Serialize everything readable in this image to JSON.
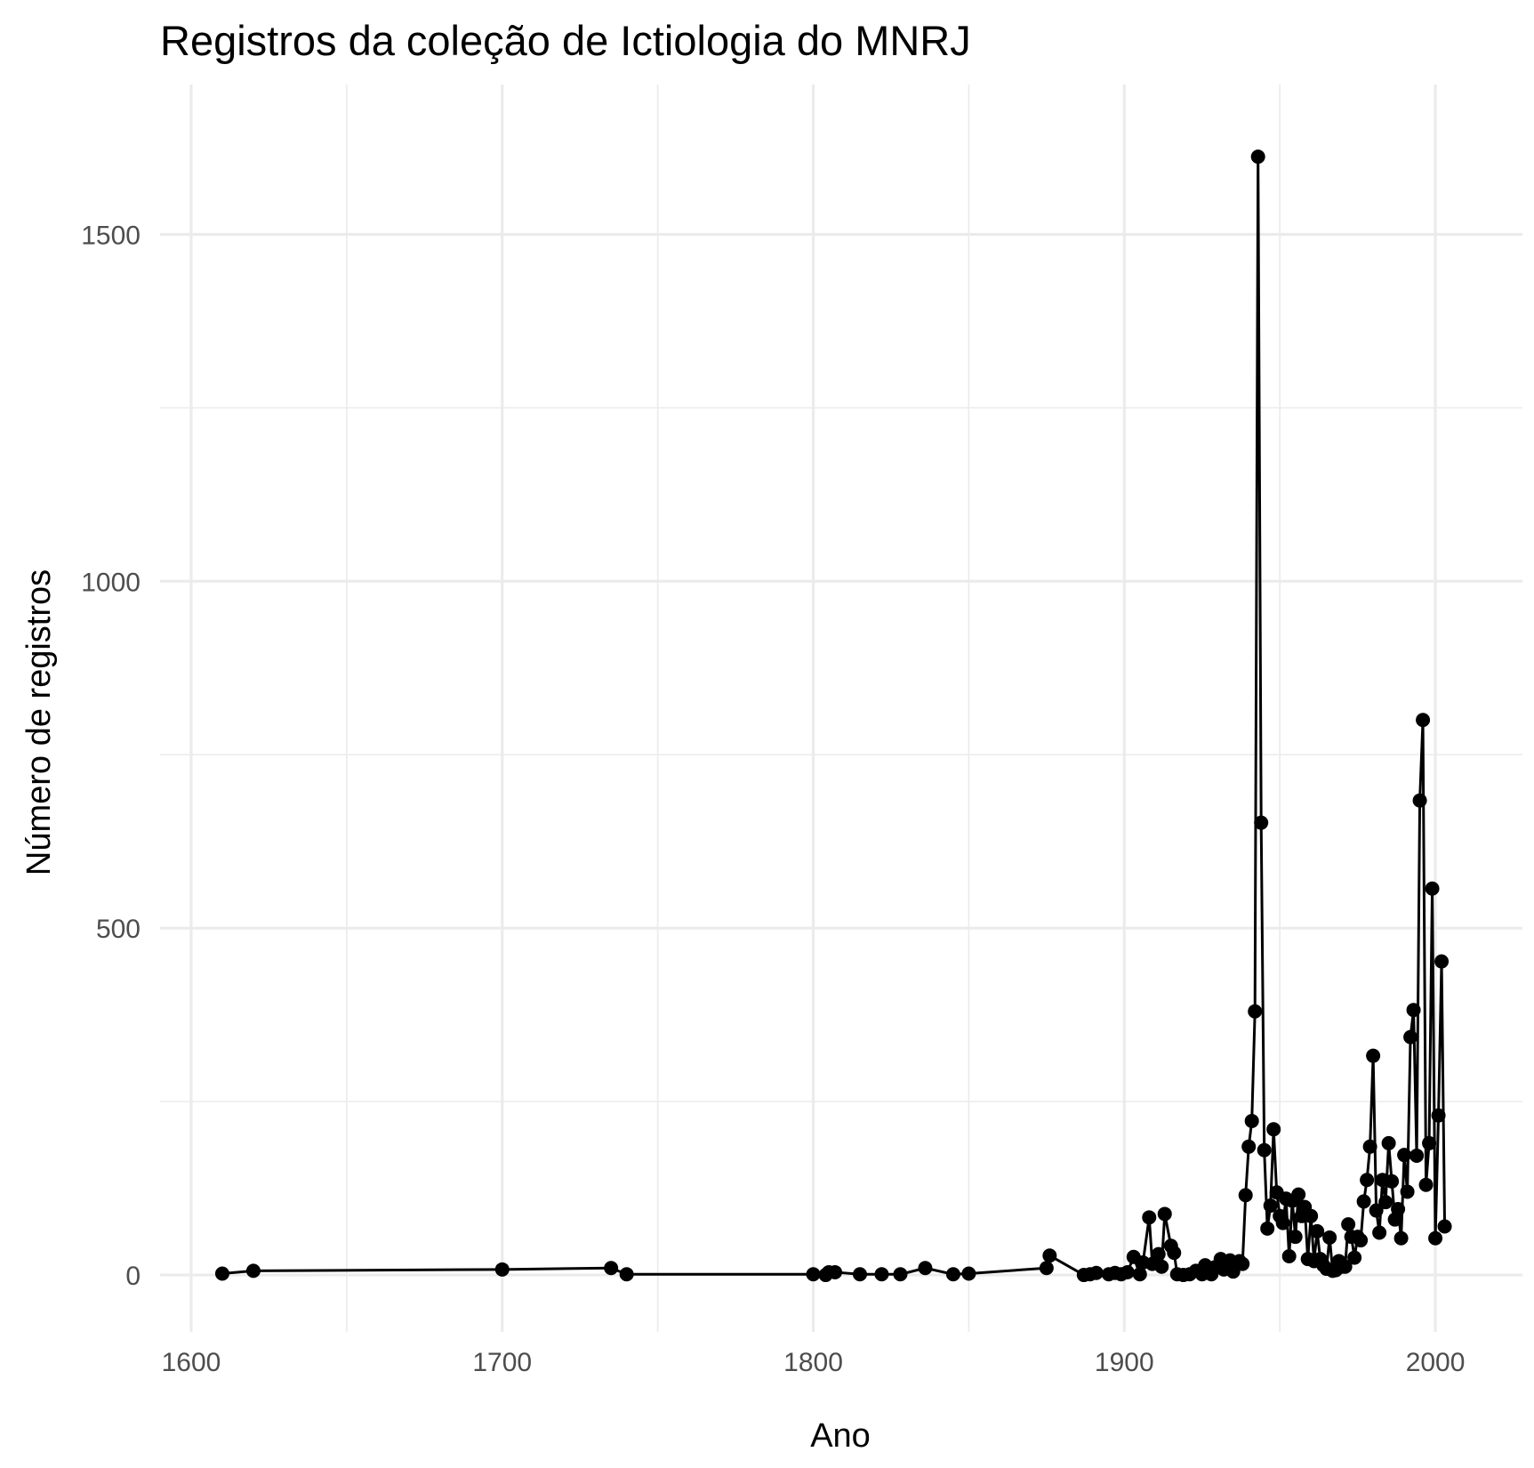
{
  "chart_data": {
    "type": "line",
    "title": "Registros da coleção de Ictiologia do MNRJ",
    "xlabel": "Ano",
    "ylabel": "Número de registros",
    "xlim": [
      1590,
      2028
    ],
    "ylim": [
      -82,
      1716
    ],
    "x_ticks": [
      1600,
      1700,
      1800,
      1900,
      2000
    ],
    "x_minor_ticks": [
      1650,
      1750,
      1850,
      1950
    ],
    "y_ticks": [
      0,
      500,
      1000,
      1500
    ],
    "y_minor_ticks": [
      250,
      750,
      1250
    ],
    "x_tick_labels": [
      "1600",
      "1700",
      "1800",
      "1900",
      "2000"
    ],
    "y_tick_labels": [
      "0",
      "500",
      "1000",
      "1500"
    ],
    "grid": true,
    "legend": false,
    "colors": {
      "line": "#000000",
      "points": "#000000",
      "grid": "#ebebeb",
      "tick_text": "#4d4d4d"
    },
    "series": [
      {
        "points": [
          [
            1610,
            2
          ],
          [
            1620,
            6
          ],
          [
            1700,
            8
          ],
          [
            1735,
            10
          ],
          [
            1740,
            1
          ],
          [
            1800,
            1
          ],
          [
            1804,
            0
          ],
          [
            1805,
            4
          ],
          [
            1807,
            4
          ],
          [
            1815,
            1
          ],
          [
            1822,
            1
          ],
          [
            1828,
            1
          ],
          [
            1836,
            10
          ],
          [
            1845,
            1
          ],
          [
            1850,
            2
          ],
          [
            1875,
            10
          ],
          [
            1876,
            28
          ],
          [
            1887,
            0
          ],
          [
            1889,
            1
          ],
          [
            1891,
            3
          ],
          [
            1895,
            1
          ],
          [
            1897,
            3
          ],
          [
            1899,
            1
          ],
          [
            1901,
            4
          ],
          [
            1903,
            26
          ],
          [
            1905,
            1
          ],
          [
            1906,
            18
          ],
          [
            1908,
            83
          ],
          [
            1909,
            16
          ],
          [
            1911,
            30
          ],
          [
            1912,
            12
          ],
          [
            1913,
            88
          ],
          [
            1915,
            42
          ],
          [
            1916,
            32
          ],
          [
            1917,
            1
          ],
          [
            1919,
            0
          ],
          [
            1921,
            1
          ],
          [
            1923,
            6
          ],
          [
            1925,
            1
          ],
          [
            1926,
            14
          ],
          [
            1928,
            1
          ],
          [
            1929,
            11
          ],
          [
            1931,
            23
          ],
          [
            1932,
            8
          ],
          [
            1934,
            21
          ],
          [
            1935,
            5
          ],
          [
            1937,
            20
          ],
          [
            1938,
            16
          ],
          [
            1939,
            115
          ],
          [
            1940,
            185
          ],
          [
            1941,
            222
          ],
          [
            1942,
            380
          ],
          [
            1943,
            1612
          ],
          [
            1944,
            652
          ],
          [
            1945,
            180
          ],
          [
            1946,
            67
          ],
          [
            1947,
            100
          ],
          [
            1948,
            210
          ],
          [
            1949,
            119
          ],
          [
            1950,
            85
          ],
          [
            1951,
            75
          ],
          [
            1952,
            110
          ],
          [
            1953,
            27
          ],
          [
            1954,
            107
          ],
          [
            1955,
            55
          ],
          [
            1956,
            116
          ],
          [
            1957,
            85
          ],
          [
            1958,
            98
          ],
          [
            1959,
            23
          ],
          [
            1960,
            85
          ],
          [
            1961,
            20
          ],
          [
            1962,
            63
          ],
          [
            1963,
            23
          ],
          [
            1964,
            14
          ],
          [
            1965,
            9
          ],
          [
            1966,
            54
          ],
          [
            1967,
            6
          ],
          [
            1968,
            7
          ],
          [
            1969,
            20
          ],
          [
            1970,
            12
          ],
          [
            1971,
            12
          ],
          [
            1972,
            73
          ],
          [
            1973,
            55
          ],
          [
            1974,
            25
          ],
          [
            1975,
            55
          ],
          [
            1976,
            50
          ],
          [
            1977,
            106
          ],
          [
            1978,
            137
          ],
          [
            1979,
            185
          ],
          [
            1980,
            316
          ],
          [
            1981,
            93
          ],
          [
            1982,
            61
          ],
          [
            1983,
            137
          ],
          [
            1984,
            105
          ],
          [
            1985,
            190
          ],
          [
            1986,
            135
          ],
          [
            1987,
            80
          ],
          [
            1988,
            95
          ],
          [
            1989,
            53
          ],
          [
            1990,
            173
          ],
          [
            1991,
            120
          ],
          [
            1992,
            343
          ],
          [
            1993,
            382
          ],
          [
            1994,
            172
          ],
          [
            1995,
            684
          ],
          [
            1996,
            800
          ],
          [
            1997,
            130
          ],
          [
            1998,
            190
          ],
          [
            1999,
            557
          ],
          [
            2000,
            53
          ],
          [
            2001,
            230
          ],
          [
            2002,
            452
          ],
          [
            2003,
            70
          ]
        ]
      }
    ]
  }
}
